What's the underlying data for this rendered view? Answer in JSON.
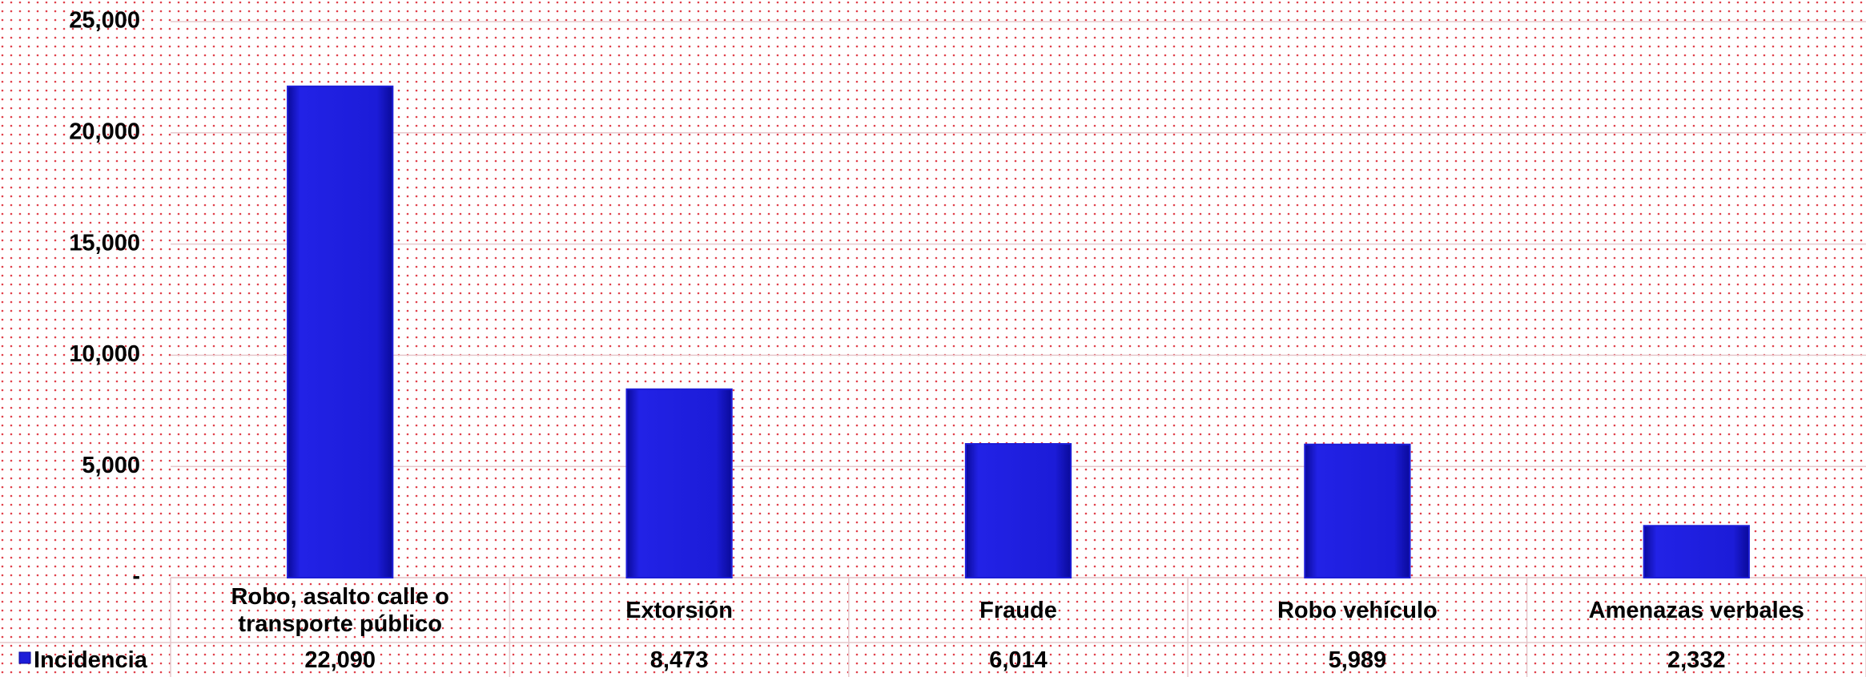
{
  "chart_data": {
    "type": "bar",
    "categories": [
      "Robo, asalto calle o transporte público",
      "Extorsión",
      "Fraude",
      "Robo vehículo",
      "Amenazas verbales"
    ],
    "series": [
      {
        "name": "Incidencia",
        "color": "#1c1cd8",
        "values": [
          22090,
          8473,
          6014,
          5989,
          2332
        ],
        "value_labels": [
          "22,090",
          "8,473",
          "6,014",
          "5,989",
          "2,332"
        ]
      }
    ],
    "ylim": [
      0,
      25000
    ],
    "yticks": [
      {
        "value": 0,
        "label": "-"
      },
      {
        "value": 5000,
        "label": "5,000"
      },
      {
        "value": 10000,
        "label": "10,000"
      },
      {
        "value": 15000,
        "label": "15,000"
      },
      {
        "value": 20000,
        "label": "20,000"
      },
      {
        "value": 25000,
        "label": "25,000"
      }
    ],
    "grid": true,
    "legend": "bottom-left"
  }
}
